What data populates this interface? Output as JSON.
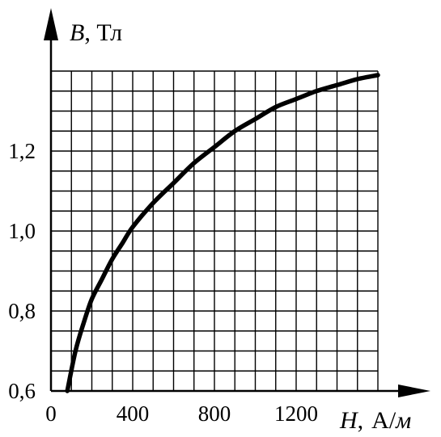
{
  "chart_data": {
    "type": "line",
    "title": "",
    "ylabel_symbol": "B",
    "ylabel_unit": ", Тл",
    "xlabel_symbol": "H",
    "xlabel_sep": ",",
    "xlabel_unit_A": "А/",
    "xlabel_unit_m": "м",
    "xlim": [
      0,
      1600
    ],
    "ylim": [
      0.6,
      1.4
    ],
    "grid": true,
    "x_ticks": [
      {
        "value": 0,
        "label": "0"
      },
      {
        "value": 400,
        "label": "400"
      },
      {
        "value": 800,
        "label": "800"
      },
      {
        "value": 1200,
        "label": "1200"
      }
    ],
    "y_ticks": [
      {
        "value": 0.6,
        "label": "0,6"
      },
      {
        "value": 0.8,
        "label": "0,8"
      },
      {
        "value": 1.0,
        "label": "1,0"
      },
      {
        "value": 1.2,
        "label": "1,2"
      }
    ],
    "series": [
      {
        "x": [
          80,
          120,
          160,
          200,
          250,
          300,
          350,
          400,
          500,
          600,
          700,
          800,
          900,
          1000,
          1100,
          1200,
          1300,
          1400,
          1500,
          1600
        ],
        "y": [
          0.6,
          0.7,
          0.77,
          0.83,
          0.88,
          0.93,
          0.97,
          1.01,
          1.07,
          1.12,
          1.17,
          1.21,
          1.25,
          1.28,
          1.31,
          1.33,
          1.35,
          1.365,
          1.38,
          1.39
        ]
      }
    ]
  }
}
